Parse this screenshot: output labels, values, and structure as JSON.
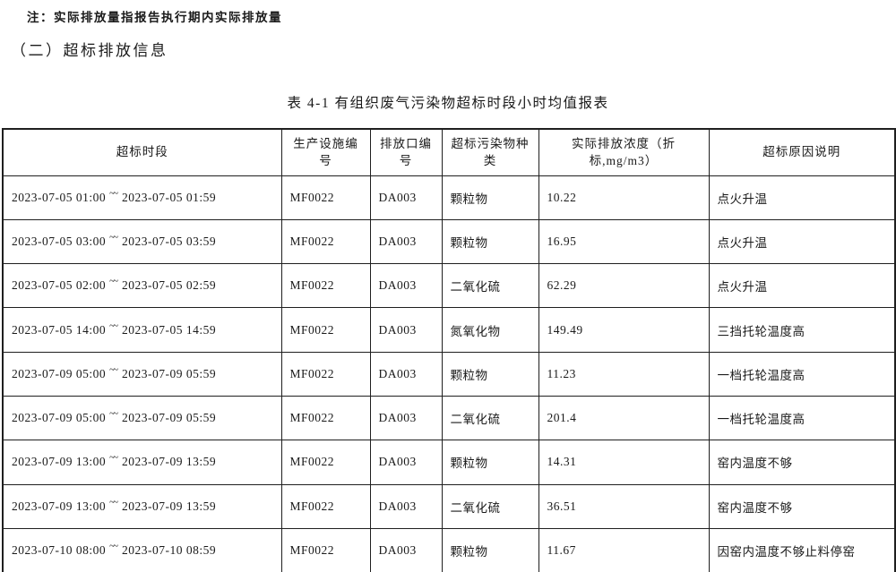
{
  "page": {
    "note": "注：实际排放量指报告执行期内实际排放量",
    "section_heading": "（二）超标排放信息",
    "table_title": "表 4-1 有组织废气污染物超标时段小时均值报表"
  },
  "table": {
    "headers": [
      "超标时段",
      "生产设施编号",
      "排放口编号",
      "超标污染物种类",
      "实际排放浓度（折标,mg/m3）",
      "超标原因说明"
    ],
    "range_separator": "~~",
    "rows": [
      {
        "start": "2023-07-05 01:00",
        "end": "2023-07-05 01:59",
        "facility": "MF0022",
        "outlet": "DA003",
        "pollutant": "颗粒物",
        "concentration": "10.22",
        "reason": "点火升温"
      },
      {
        "start": "2023-07-05 03:00",
        "end": "2023-07-05 03:59",
        "facility": "MF0022",
        "outlet": "DA003",
        "pollutant": "颗粒物",
        "concentration": "16.95",
        "reason": "点火升温"
      },
      {
        "start": "2023-07-05 02:00",
        "end": "2023-07-05 02:59",
        "facility": "MF0022",
        "outlet": "DA003",
        "pollutant": "二氧化硫",
        "concentration": "62.29",
        "reason": "点火升温"
      },
      {
        "start": "2023-07-05 14:00",
        "end": "2023-07-05 14:59",
        "facility": "MF0022",
        "outlet": "DA003",
        "pollutant": "氮氧化物",
        "concentration": "149.49",
        "reason": "三挡托轮温度高"
      },
      {
        "start": "2023-07-09 05:00",
        "end": "2023-07-09 05:59",
        "facility": "MF0022",
        "outlet": "DA003",
        "pollutant": "颗粒物",
        "concentration": "11.23",
        "reason": "一档托轮温度高"
      },
      {
        "start": "2023-07-09 05:00",
        "end": "2023-07-09 05:59",
        "facility": "MF0022",
        "outlet": "DA003",
        "pollutant": "二氧化硫",
        "concentration": "201.4",
        "reason": "一档托轮温度高"
      },
      {
        "start": "2023-07-09 13:00",
        "end": "2023-07-09 13:59",
        "facility": "MF0022",
        "outlet": "DA003",
        "pollutant": "颗粒物",
        "concentration": "14.31",
        "reason": "窑内温度不够"
      },
      {
        "start": "2023-07-09 13:00",
        "end": "2023-07-09 13:59",
        "facility": "MF0022",
        "outlet": "DA003",
        "pollutant": "二氧化硫",
        "concentration": "36.51",
        "reason": "窑内温度不够"
      },
      {
        "start": "2023-07-10 08:00",
        "end": "2023-07-10 08:59",
        "facility": "MF0022",
        "outlet": "DA003",
        "pollutant": "颗粒物",
        "concentration": "11.67",
        "reason": "因窑内温度不够止料停窑"
      }
    ]
  }
}
